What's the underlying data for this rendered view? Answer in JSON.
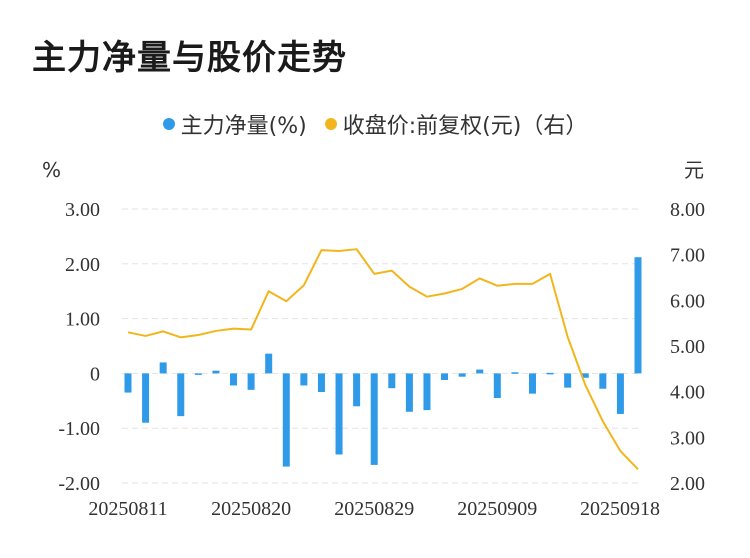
{
  "title": "主力净量与股价走势",
  "colors": {
    "bar": "#2e9ae8",
    "line": "#f2b61c",
    "grid": "#e3e3e3"
  },
  "chart_data": {
    "type": "bar",
    "title": "主力净量与股价走势",
    "y_left_unit": "%",
    "y_right_unit": "元",
    "ylim_left": [
      -2.0,
      3.0
    ],
    "ylim_right": [
      2.0,
      8.0
    ],
    "y_left_ticks": [
      "3.00",
      "2.00",
      "1.00",
      "0",
      "-1.00",
      "-2.00"
    ],
    "y_right_ticks": [
      "8.00",
      "7.00",
      "6.00",
      "5.00",
      "4.00",
      "3.00",
      "2.00"
    ],
    "x_tick_labels": [
      "20250811",
      "20250820",
      "20250829",
      "20250909",
      "20250918"
    ],
    "grid": true,
    "legend_position": "top-center",
    "series": [
      {
        "name": "主力净量(%)",
        "type": "bar",
        "axis": "left",
        "values": [
          -0.35,
          -0.9,
          0.2,
          -0.78,
          -0.02,
          0.05,
          -0.22,
          -0.3,
          0.36,
          -1.7,
          -0.22,
          -0.34,
          -1.48,
          -0.6,
          -1.67,
          -0.27,
          -0.7,
          -0.67,
          -0.12,
          -0.06,
          0.07,
          -0.45,
          0.02,
          -0.37,
          0.01,
          -0.26,
          -0.08,
          -0.28,
          -0.74,
          2.12
        ]
      },
      {
        "name": "收盘价:前复权(元)（右）",
        "type": "line",
        "axis": "right",
        "values": [
          5.3,
          5.22,
          5.32,
          5.19,
          5.24,
          5.33,
          5.38,
          5.36,
          6.2,
          5.98,
          6.33,
          7.1,
          7.08,
          7.12,
          6.58,
          6.65,
          6.3,
          6.08,
          6.15,
          6.25,
          6.48,
          6.32,
          6.36,
          6.36,
          6.58,
          5.2,
          4.15,
          3.35,
          2.7,
          2.3
        ]
      }
    ]
  }
}
